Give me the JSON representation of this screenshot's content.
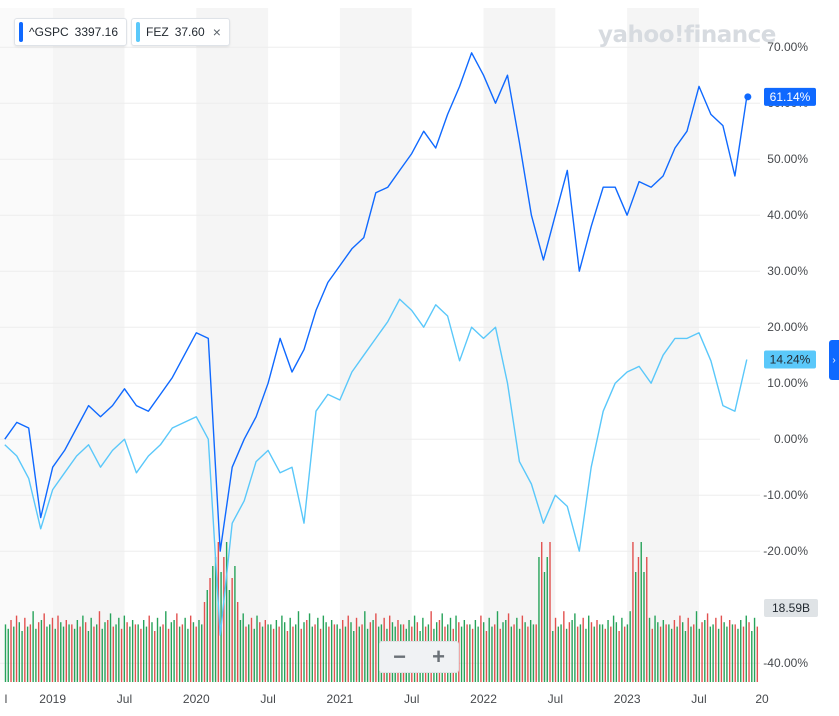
{
  "legend": [
    {
      "symbol": "^GSPC",
      "value": "3397.16",
      "color": "#0f69ff",
      "closable": false
    },
    {
      "symbol": "FEZ",
      "value": "37.60",
      "color": "#5ac8fa",
      "closable": true
    }
  ],
  "close_icon": "×",
  "watermark": "yahoo!finance",
  "zoom": {
    "minus": "−",
    "plus": "+"
  },
  "edge_tab_icon": "›",
  "colors": {
    "gspc": "#0f69ff",
    "fez": "#5ac8fa",
    "volume_up": "#27a35a",
    "volume_down": "#e2514f",
    "band": "#f5f5f5"
  },
  "chart_data": {
    "type": "line",
    "y_unit": "%",
    "ylim": [
      -43,
      77
    ],
    "y_ticks": [
      "70.00%",
      "60.00%",
      "50.00%",
      "40.00%",
      "30.00%",
      "20.00%",
      "10.00%",
      "0.00%",
      "-10.00%",
      "-20.00%",
      "-40.00%"
    ],
    "x_ticks": [
      "l",
      "2019",
      "Jul",
      "2020",
      "Jul",
      "2021",
      "Jul",
      "2022",
      "Jul",
      "2023",
      "Jul",
      "20"
    ],
    "xlim": [
      "2018-09",
      "2023-12"
    ],
    "x": [
      "2018-09",
      "2018-10",
      "2018-11",
      "2018-12",
      "2019-01",
      "2019-02",
      "2019-03",
      "2019-04",
      "2019-05",
      "2019-06",
      "2019-07",
      "2019-08",
      "2019-09",
      "2019-10",
      "2019-11",
      "2019-12",
      "2020-01",
      "2020-02",
      "2020-03",
      "2020-04",
      "2020-05",
      "2020-06",
      "2020-07",
      "2020-08",
      "2020-09",
      "2020-10",
      "2020-11",
      "2020-12",
      "2021-01",
      "2021-02",
      "2021-03",
      "2021-04",
      "2021-05",
      "2021-06",
      "2021-07",
      "2021-08",
      "2021-09",
      "2021-10",
      "2021-11",
      "2021-12",
      "2022-01",
      "2022-02",
      "2022-03",
      "2022-04",
      "2022-05",
      "2022-06",
      "2022-07",
      "2022-08",
      "2022-09",
      "2022-10",
      "2022-11",
      "2022-12",
      "2023-01",
      "2023-02",
      "2023-03",
      "2023-04",
      "2023-05",
      "2023-06",
      "2023-07",
      "2023-08",
      "2023-09",
      "2023-10",
      "2023-11"
    ],
    "series": [
      {
        "name": "^GSPC",
        "values": [
          0,
          3,
          2,
          -14,
          -5,
          -2,
          2,
          6,
          4,
          6,
          9,
          6,
          5,
          8,
          11,
          15,
          19,
          18,
          -20,
          -5,
          0,
          4,
          10,
          18,
          12,
          16,
          23,
          28,
          31,
          34,
          36,
          44,
          45,
          48,
          51,
          55,
          52,
          58,
          63,
          69,
          65,
          60,
          65,
          53,
          40,
          32,
          40,
          48,
          30,
          38,
          45,
          45,
          40,
          46,
          45,
          47,
          52,
          55,
          63,
          58,
          56,
          47,
          61.14
        ]
      },
      {
        "name": "FEZ",
        "values": [
          -1,
          -3,
          -7,
          -16,
          -9,
          -6,
          -3,
          -1,
          -5,
          -2,
          0,
          -6,
          -3,
          -1,
          2,
          3,
          4,
          0,
          -35,
          -15,
          -11,
          -4,
          -2,
          -6,
          -5,
          -15,
          5,
          8,
          7,
          12,
          15,
          18,
          21,
          25,
          23,
          20,
          24,
          22,
          14,
          20,
          18,
          20,
          10,
          -4,
          -8,
          -15,
          -10,
          -12,
          -20,
          -5,
          5,
          10,
          12,
          13,
          10,
          15,
          18,
          18,
          19,
          14,
          6,
          5,
          14.24
        ]
      }
    ],
    "last_value_labels": [
      "61.14%",
      "14.24%"
    ],
    "volume_label": "18.59B",
    "volume_pattern": [
      8,
      6,
      10,
      7,
      12,
      9,
      5,
      11,
      7,
      8,
      14,
      6,
      9,
      10,
      13,
      7,
      8,
      11,
      6,
      12,
      9,
      7,
      10,
      8
    ],
    "volume_spike_months": [
      "2020-03",
      "2022-06",
      "2023-02"
    ]
  }
}
